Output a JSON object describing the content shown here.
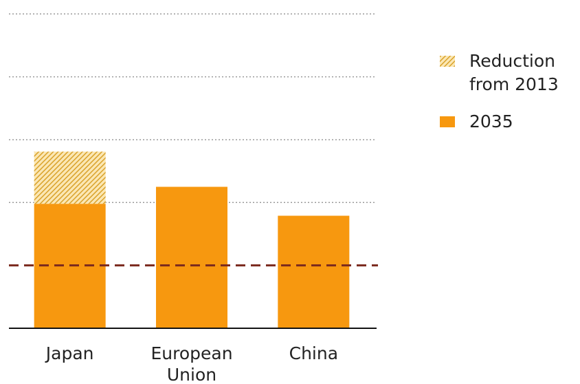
{
  "chart_data": {
    "type": "stacked_bar",
    "categories": [
      "Japan",
      "European Union",
      "China"
    ],
    "series": [
      {
        "name": "2035",
        "color": "#f7980f",
        "values": [
          1.98,
          2.25,
          1.79
        ]
      },
      {
        "name": "Reduction from 2013",
        "color": "#e0ad2a",
        "pattern": "hatch",
        "values": [
          0.83,
          null,
          null
        ]
      }
    ],
    "legend_order": [
      1,
      0
    ],
    "legend_position": "right",
    "ylim": [
      0,
      5.2
    ],
    "gridlines": [
      2,
      3,
      4,
      5
    ],
    "reference_line": 1,
    "reference_color": "#7b2a1e"
  }
}
